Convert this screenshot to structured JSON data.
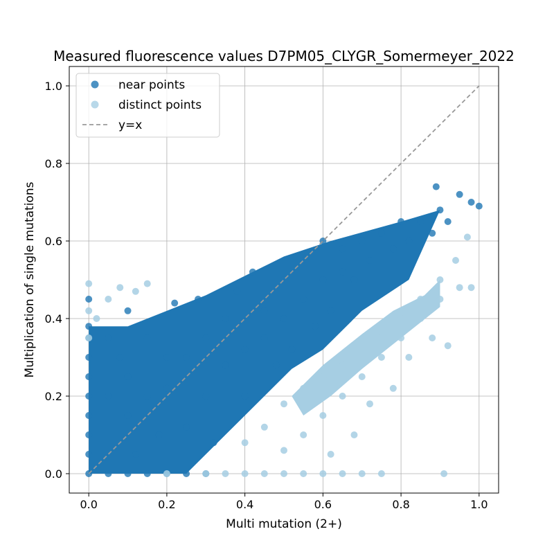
{
  "chart_data": {
    "type": "scatter",
    "title": "Measured fluorescence values D7PM05_CLYGR_Somermeyer_2022",
    "xlabel": "Multi mutation (2+)",
    "ylabel": "Multiplication of single mutations",
    "xlim": [
      -0.05,
      1.05
    ],
    "ylim": [
      -0.05,
      1.05
    ],
    "xticks": [
      "0.0",
      "0.2",
      "0.4",
      "0.6",
      "0.8",
      "1.0"
    ],
    "yticks": [
      "0.0",
      "0.2",
      "0.4",
      "0.6",
      "0.8",
      "1.0"
    ],
    "grid": true,
    "legend_position": "top-left",
    "series": [
      {
        "name": "near points",
        "color": "#1f77b4",
        "note_distribution": "dense cloud spanning x 0 to 1, y 0 to 0.74, clustered near and mostly below the y=x line",
        "points": [
          [
            0.0,
            0.0
          ],
          [
            0.0,
            0.05
          ],
          [
            0.0,
            0.1
          ],
          [
            0.0,
            0.15
          ],
          [
            0.0,
            0.2
          ],
          [
            0.0,
            0.25
          ],
          [
            0.0,
            0.3
          ],
          [
            0.0,
            0.35
          ],
          [
            0.0,
            0.38
          ],
          [
            0.0,
            0.45
          ],
          [
            0.05,
            0.0
          ],
          [
            0.1,
            0.0
          ],
          [
            0.15,
            0.0
          ],
          [
            0.2,
            0.0
          ],
          [
            0.25,
            0.0
          ],
          [
            0.3,
            0.0
          ],
          [
            0.05,
            0.2
          ],
          [
            0.05,
            0.35
          ],
          [
            0.08,
            0.3
          ],
          [
            0.1,
            0.15
          ],
          [
            0.1,
            0.25
          ],
          [
            0.1,
            0.42
          ],
          [
            0.12,
            0.05
          ],
          [
            0.15,
            0.2
          ],
          [
            0.15,
            0.35
          ],
          [
            0.18,
            0.1
          ],
          [
            0.2,
            0.3
          ],
          [
            0.2,
            0.22
          ],
          [
            0.22,
            0.44
          ],
          [
            0.25,
            0.12
          ],
          [
            0.25,
            0.3
          ],
          [
            0.28,
            0.45
          ],
          [
            0.3,
            0.2
          ],
          [
            0.3,
            0.35
          ],
          [
            0.32,
            0.08
          ],
          [
            0.35,
            0.28
          ],
          [
            0.35,
            0.4
          ],
          [
            0.38,
            0.47
          ],
          [
            0.4,
            0.2
          ],
          [
            0.4,
            0.32
          ],
          [
            0.42,
            0.52
          ],
          [
            0.45,
            0.35
          ],
          [
            0.45,
            0.42
          ],
          [
            0.48,
            0.28
          ],
          [
            0.5,
            0.4
          ],
          [
            0.5,
            0.5
          ],
          [
            0.52,
            0.32
          ],
          [
            0.55,
            0.45
          ],
          [
            0.55,
            0.55
          ],
          [
            0.58,
            0.38
          ],
          [
            0.6,
            0.5
          ],
          [
            0.6,
            0.6
          ],
          [
            0.62,
            0.42
          ],
          [
            0.65,
            0.52
          ],
          [
            0.65,
            0.58
          ],
          [
            0.68,
            0.5
          ],
          [
            0.7,
            0.6
          ],
          [
            0.72,
            0.55
          ],
          [
            0.75,
            0.62
          ],
          [
            0.78,
            0.58
          ],
          [
            0.8,
            0.65
          ],
          [
            0.82,
            0.6
          ],
          [
            0.85,
            0.65
          ],
          [
            0.88,
            0.62
          ],
          [
            0.9,
            0.68
          ],
          [
            0.92,
            0.65
          ],
          [
            0.95,
            0.72
          ],
          [
            0.98,
            0.7
          ],
          [
            1.0,
            0.69
          ],
          [
            0.89,
            0.74
          ]
        ]
      },
      {
        "name": "distinct points",
        "color": "#a6cee3",
        "note_distribution": "points below the near band (x 0.5 to 1, y 0 to 0.5) plus points near x=0 at y 0.35 to 0.5",
        "points": [
          [
            0.0,
            0.35
          ],
          [
            0.0,
            0.42
          ],
          [
            0.0,
            0.49
          ],
          [
            0.02,
            0.4
          ],
          [
            0.05,
            0.45
          ],
          [
            0.08,
            0.48
          ],
          [
            0.12,
            0.47
          ],
          [
            0.15,
            0.49
          ],
          [
            0.2,
            0.0
          ],
          [
            0.3,
            0.0
          ],
          [
            0.35,
            0.0
          ],
          [
            0.4,
            0.0
          ],
          [
            0.45,
            0.0
          ],
          [
            0.5,
            0.0
          ],
          [
            0.55,
            0.0
          ],
          [
            0.6,
            0.0
          ],
          [
            0.65,
            0.0
          ],
          [
            0.7,
            0.0
          ],
          [
            0.75,
            0.0
          ],
          [
            0.91,
            0.0
          ],
          [
            0.4,
            0.08
          ],
          [
            0.45,
            0.12
          ],
          [
            0.5,
            0.06
          ],
          [
            0.5,
            0.18
          ],
          [
            0.55,
            0.1
          ],
          [
            0.55,
            0.22
          ],
          [
            0.6,
            0.15
          ],
          [
            0.6,
            0.25
          ],
          [
            0.62,
            0.05
          ],
          [
            0.65,
            0.2
          ],
          [
            0.65,
            0.28
          ],
          [
            0.68,
            0.1
          ],
          [
            0.7,
            0.25
          ],
          [
            0.7,
            0.3
          ],
          [
            0.72,
            0.18
          ],
          [
            0.75,
            0.3
          ],
          [
            0.75,
            0.35
          ],
          [
            0.78,
            0.22
          ],
          [
            0.8,
            0.35
          ],
          [
            0.8,
            0.4
          ],
          [
            0.82,
            0.3
          ],
          [
            0.85,
            0.4
          ],
          [
            0.85,
            0.45
          ],
          [
            0.88,
            0.35
          ],
          [
            0.9,
            0.45
          ],
          [
            0.9,
            0.5
          ],
          [
            0.92,
            0.33
          ],
          [
            0.95,
            0.48
          ],
          [
            0.98,
            0.48
          ],
          [
            0.94,
            0.55
          ],
          [
            0.97,
            0.61
          ]
        ]
      },
      {
        "name": "y=x",
        "color": "#999999",
        "line": true,
        "points": [
          [
            0.0,
            0.0
          ],
          [
            1.0,
            1.0
          ]
        ]
      }
    ]
  },
  "legend": {
    "items": [
      {
        "label": "near points",
        "color": "#1f77b4"
      },
      {
        "label": "distinct points",
        "color": "#a6cee3"
      },
      {
        "label": "y=x",
        "color": "#999999"
      }
    ]
  }
}
